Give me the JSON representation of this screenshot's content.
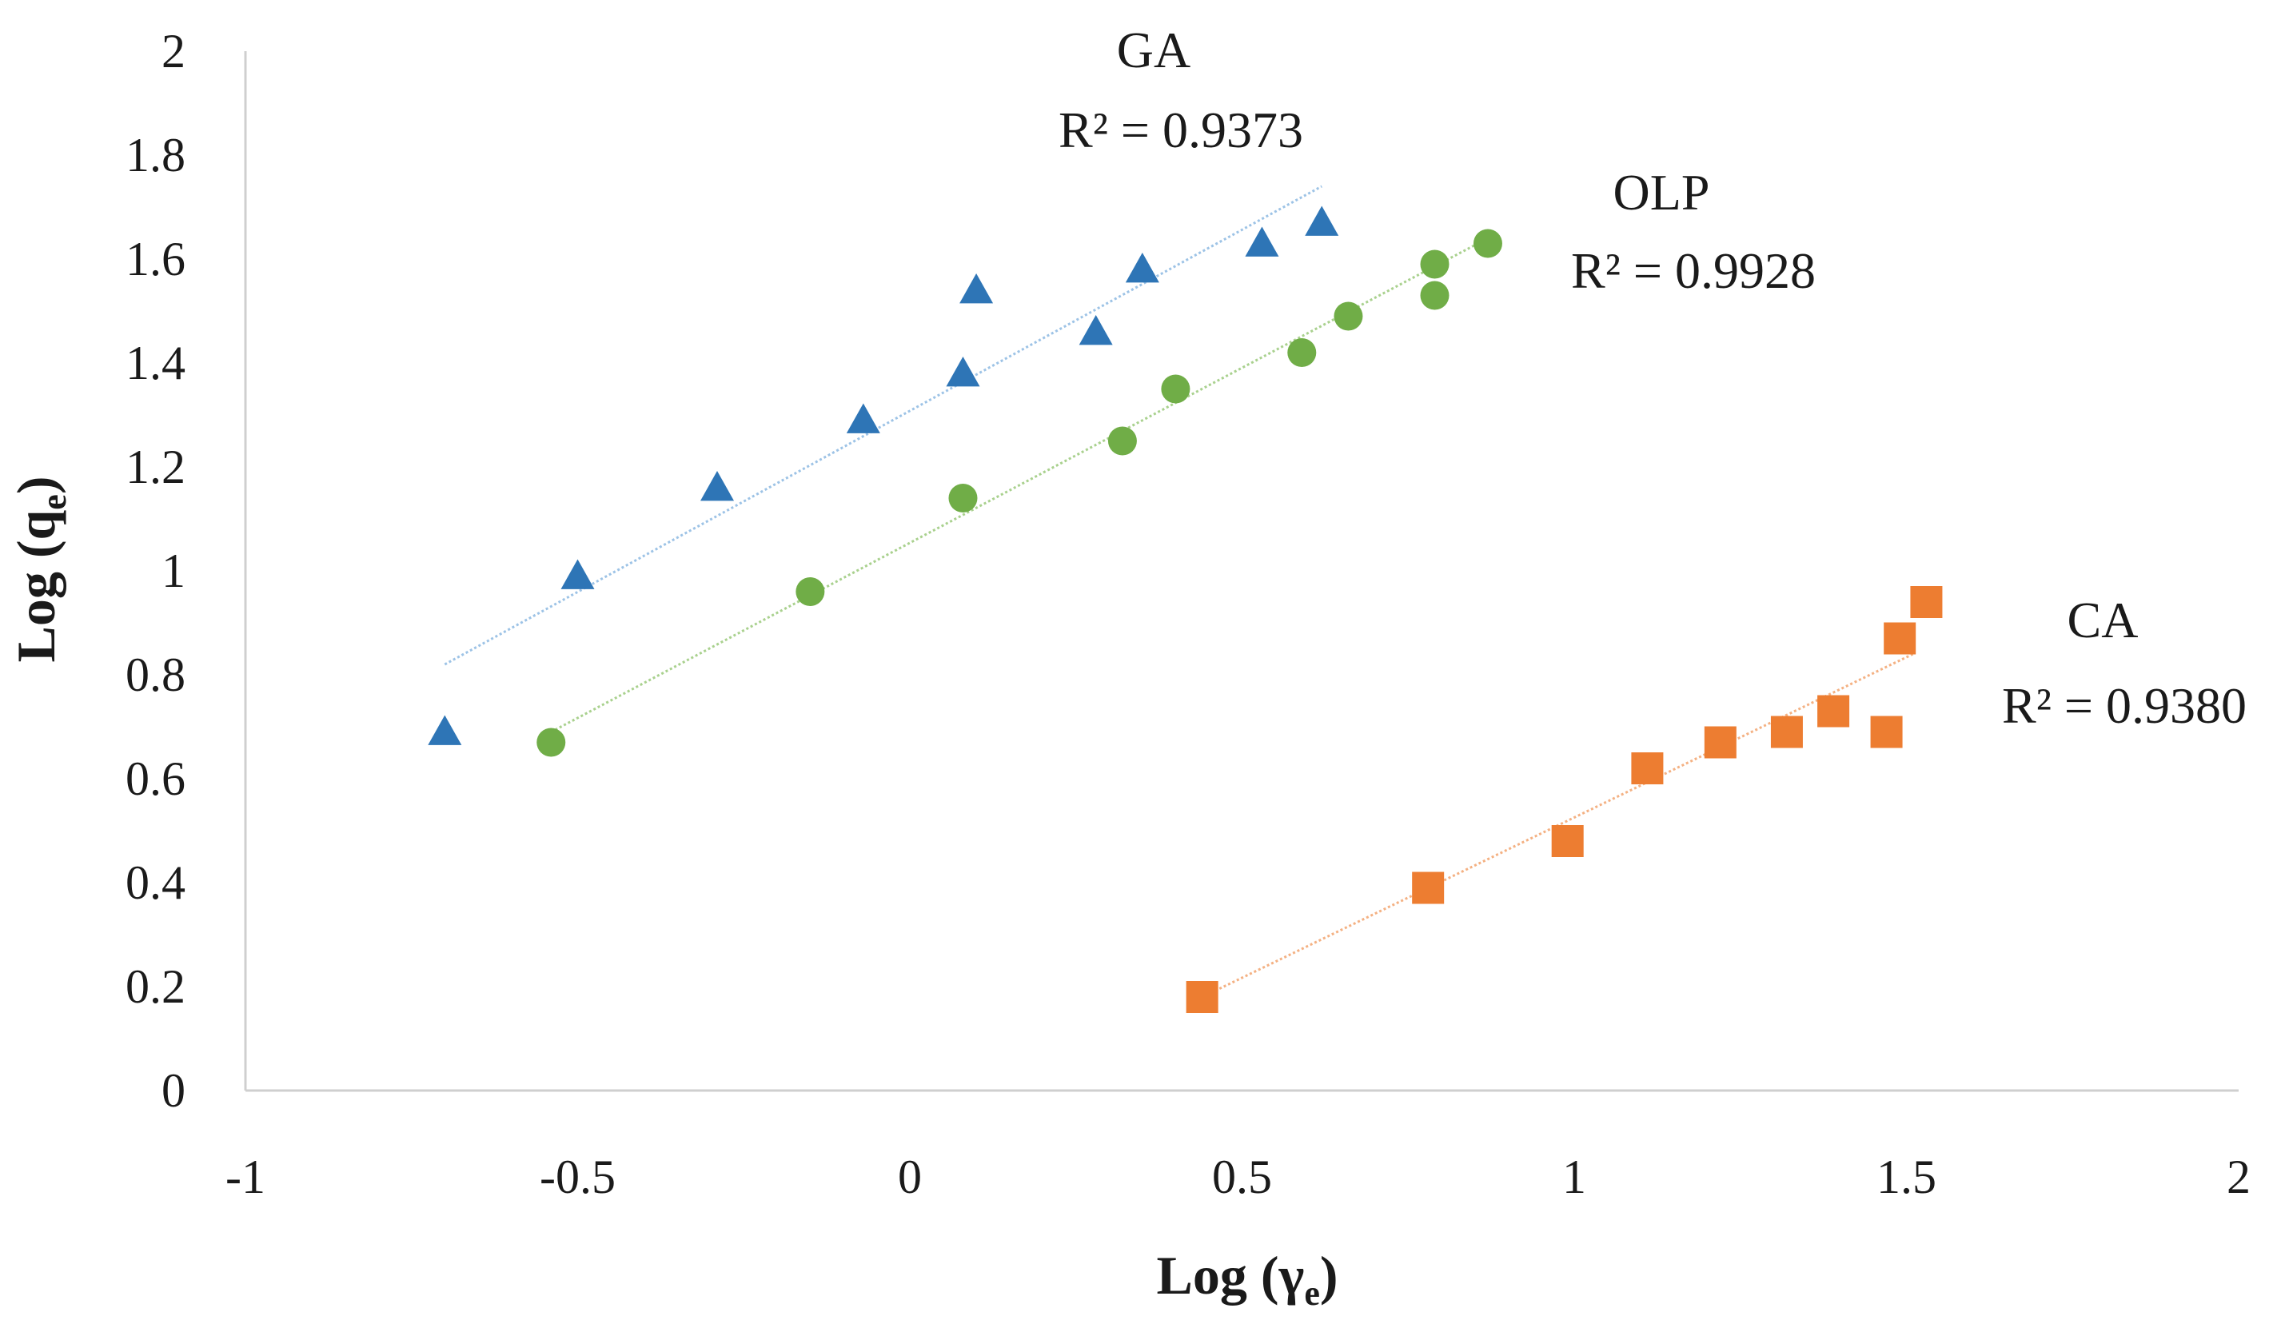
{
  "chart_data": {
    "type": "scatter",
    "title": "",
    "xlabel": {
      "prefix": "Log (",
      "symbol": "γ",
      "sub": "e",
      "suffix": ")"
    },
    "ylabel": {
      "prefix": "Log (q",
      "sub": "e",
      "suffix": ")"
    },
    "xlim": [
      -1,
      2
    ],
    "ylim": [
      0,
      2
    ],
    "x_ticks": [
      -1,
      -0.5,
      0,
      0.5,
      1,
      1.5,
      2
    ],
    "x_tick_labels": [
      "-1",
      "-0.5",
      "0",
      "0.5",
      "1",
      "1.5",
      "2"
    ],
    "y_ticks": [
      0,
      0.2,
      0.4,
      0.6,
      0.8,
      1,
      1.2,
      1.4,
      1.6,
      1.8,
      2
    ],
    "y_tick_labels": [
      "0",
      "0.2",
      "0.4",
      "0.6",
      "0.8",
      "1",
      "1.2",
      "1.4",
      "1.6",
      "1.8",
      "2"
    ],
    "grid": false,
    "legend": "none",
    "series": [
      {
        "name": "GA",
        "marker": "triangle",
        "color": "#2e75b6",
        "trend_color": "#9dc3e6",
        "r2_label": "R² = 0.9373",
        "x": [
          -0.7,
          -0.5,
          -0.29,
          -0.07,
          0.08,
          0.1,
          0.28,
          0.35,
          0.53,
          0.62
        ],
        "y": [
          0.69,
          0.99,
          1.16,
          1.29,
          1.38,
          1.54,
          1.46,
          1.58,
          1.63,
          1.67
        ],
        "trendline": {
          "x": [
            -0.7,
            0.62
          ],
          "y": [
            0.82,
            1.74
          ]
        }
      },
      {
        "name": "OLP",
        "marker": "circle",
        "color": "#70ad47",
        "trend_color": "#a9d18e",
        "r2_label": "R² = 0.9928",
        "x": [
          -0.54,
          -0.15,
          0.08,
          0.32,
          0.4,
          0.59,
          0.66,
          0.79,
          0.79,
          0.87
        ],
        "y": [
          0.67,
          0.96,
          1.14,
          1.25,
          1.35,
          1.42,
          1.49,
          1.53,
          1.59,
          1.63
        ],
        "trendline": {
          "x": [
            -0.54,
            0.87
          ],
          "y": [
            0.69,
            1.64
          ]
        }
      },
      {
        "name": "CA",
        "marker": "square",
        "color": "#ed7d31",
        "trend_color": "#f4b183",
        "r2_label": "R² = 0.9380",
        "x": [
          0.44,
          0.78,
          0.99,
          1.11,
          1.22,
          1.32,
          1.39,
          1.47,
          1.49,
          1.53
        ],
        "y": [
          0.18,
          0.39,
          0.48,
          0.62,
          0.67,
          0.69,
          0.73,
          0.69,
          0.87,
          0.94
        ],
        "trendline": {
          "x": [
            0.44,
            1.51
          ],
          "y": [
            0.18,
            0.84
          ]
        }
      }
    ]
  }
}
